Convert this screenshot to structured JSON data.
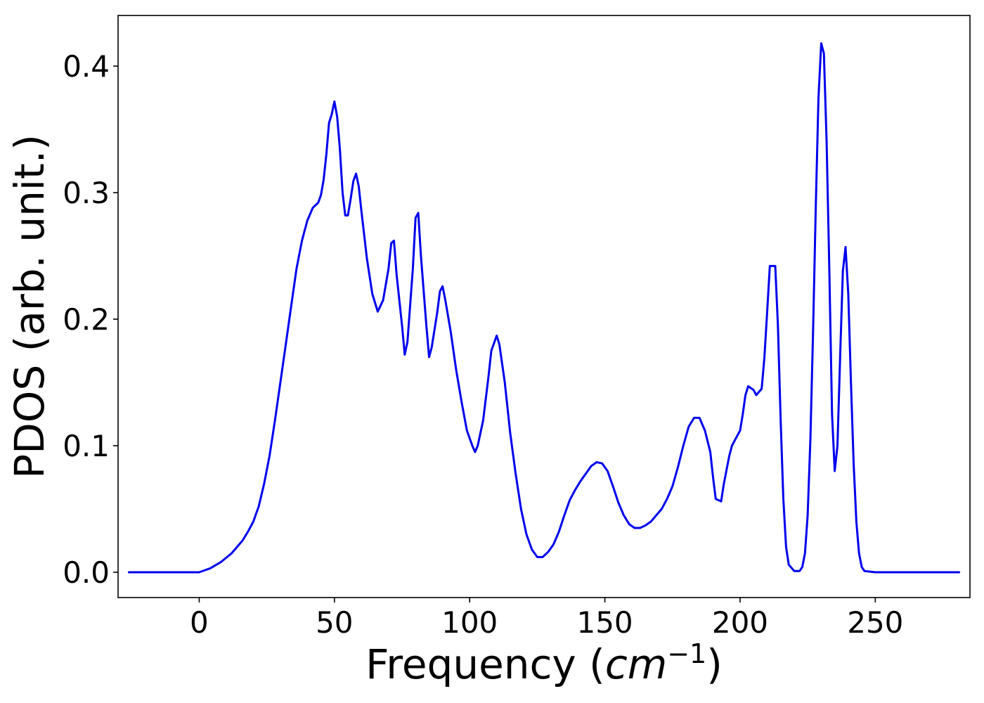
{
  "chart_data": {
    "type": "line",
    "title": "",
    "xlabel": {
      "prefix": "Frequency (",
      "unit_base": "cm",
      "unit_exp": "−1",
      "suffix": ")"
    },
    "ylabel": "PDOS (arb. unit.)",
    "xlim": [
      -30,
      285
    ],
    "ylim": [
      -0.02,
      0.44
    ],
    "grid": false,
    "legend": "none",
    "x_ticks": [
      {
        "value": 0,
        "label": "0"
      },
      {
        "value": 50,
        "label": "50"
      },
      {
        "value": 100,
        "label": "100"
      },
      {
        "value": 150,
        "label": "150"
      },
      {
        "value": 200,
        "label": "200"
      },
      {
        "value": 250,
        "label": "250"
      }
    ],
    "y_ticks": [
      {
        "value": 0.0,
        "label": "0.0"
      },
      {
        "value": 0.1,
        "label": "0.1"
      },
      {
        "value": 0.2,
        "label": "0.2"
      },
      {
        "value": 0.3,
        "label": "0.3"
      },
      {
        "value": 0.4,
        "label": "0.4"
      }
    ],
    "series": [
      {
        "color": "#0000ee",
        "points": [
          [
            -26,
            0.0
          ],
          [
            -10,
            0.0
          ],
          [
            0,
            0.0
          ],
          [
            4,
            0.003
          ],
          [
            8,
            0.008
          ],
          [
            12,
            0.015
          ],
          [
            16,
            0.025
          ],
          [
            18,
            0.032
          ],
          [
            20,
            0.04
          ],
          [
            22,
            0.052
          ],
          [
            24,
            0.07
          ],
          [
            26,
            0.092
          ],
          [
            28,
            0.12
          ],
          [
            30,
            0.15
          ],
          [
            32,
            0.18
          ],
          [
            34,
            0.21
          ],
          [
            36,
            0.24
          ],
          [
            38,
            0.262
          ],
          [
            40,
            0.278
          ],
          [
            42,
            0.288
          ],
          [
            44,
            0.292
          ],
          [
            45,
            0.298
          ],
          [
            46,
            0.31
          ],
          [
            47,
            0.33
          ],
          [
            48,
            0.355
          ],
          [
            49,
            0.362
          ],
          [
            50,
            0.372
          ],
          [
            51,
            0.36
          ],
          [
            52,
            0.335
          ],
          [
            53,
            0.3
          ],
          [
            54,
            0.282
          ],
          [
            55,
            0.282
          ],
          [
            56,
            0.295
          ],
          [
            57,
            0.309
          ],
          [
            58,
            0.315
          ],
          [
            59,
            0.305
          ],
          [
            60,
            0.285
          ],
          [
            62,
            0.248
          ],
          [
            64,
            0.22
          ],
          [
            66,
            0.206
          ],
          [
            68,
            0.215
          ],
          [
            70,
            0.24
          ],
          [
            71,
            0.26
          ],
          [
            72,
            0.262
          ],
          [
            73,
            0.235
          ],
          [
            75,
            0.195
          ],
          [
            76,
            0.172
          ],
          [
            77,
            0.182
          ],
          [
            79,
            0.24
          ],
          [
            80,
            0.28
          ],
          [
            81,
            0.284
          ],
          [
            82,
            0.25
          ],
          [
            84,
            0.195
          ],
          [
            85,
            0.17
          ],
          [
            86,
            0.178
          ],
          [
            88,
            0.205
          ],
          [
            89,
            0.222
          ],
          [
            90,
            0.226
          ],
          [
            91,
            0.215
          ],
          [
            93,
            0.19
          ],
          [
            95,
            0.16
          ],
          [
            97,
            0.135
          ],
          [
            99,
            0.112
          ],
          [
            101,
            0.1
          ],
          [
            102,
            0.095
          ],
          [
            103,
            0.1
          ],
          [
            105,
            0.12
          ],
          [
            107,
            0.155
          ],
          [
            108,
            0.175
          ],
          [
            110,
            0.187
          ],
          [
            111,
            0.18
          ],
          [
            113,
            0.15
          ],
          [
            115,
            0.11
          ],
          [
            117,
            0.078
          ],
          [
            119,
            0.05
          ],
          [
            121,
            0.03
          ],
          [
            123,
            0.018
          ],
          [
            125,
            0.012
          ],
          [
            127,
            0.012
          ],
          [
            129,
            0.016
          ],
          [
            131,
            0.022
          ],
          [
            133,
            0.032
          ],
          [
            135,
            0.045
          ],
          [
            137,
            0.057
          ],
          [
            139,
            0.065
          ],
          [
            141,
            0.072
          ],
          [
            143,
            0.078
          ],
          [
            145,
            0.084
          ],
          [
            147,
            0.087
          ],
          [
            149,
            0.086
          ],
          [
            151,
            0.08
          ],
          [
            153,
            0.068
          ],
          [
            155,
            0.055
          ],
          [
            157,
            0.045
          ],
          [
            159,
            0.038
          ],
          [
            161,
            0.035
          ],
          [
            163,
            0.035
          ],
          [
            165,
            0.037
          ],
          [
            167,
            0.04
          ],
          [
            169,
            0.045
          ],
          [
            171,
            0.05
          ],
          [
            173,
            0.058
          ],
          [
            175,
            0.068
          ],
          [
            177,
            0.083
          ],
          [
            179,
            0.1
          ],
          [
            181,
            0.115
          ],
          [
            183,
            0.122
          ],
          [
            185,
            0.122
          ],
          [
            187,
            0.112
          ],
          [
            189,
            0.095
          ],
          [
            190,
            0.075
          ],
          [
            191,
            0.058
          ],
          [
            193,
            0.056
          ],
          [
            194,
            0.07
          ],
          [
            196,
            0.092
          ],
          [
            197,
            0.1
          ],
          [
            199,
            0.108
          ],
          [
            200,
            0.112
          ],
          [
            201,
            0.125
          ],
          [
            202,
            0.14
          ],
          [
            203,
            0.147
          ],
          [
            205,
            0.144
          ],
          [
            206,
            0.14
          ],
          [
            208,
            0.145
          ],
          [
            209,
            0.17
          ],
          [
            210,
            0.205
          ],
          [
            211,
            0.242
          ],
          [
            213,
            0.242
          ],
          [
            214,
            0.195
          ],
          [
            215,
            0.12
          ],
          [
            216,
            0.058
          ],
          [
            217,
            0.02
          ],
          [
            218,
            0.006
          ],
          [
            220,
            0.001
          ],
          [
            222,
            0.001
          ],
          [
            223,
            0.004
          ],
          [
            224,
            0.015
          ],
          [
            225,
            0.045
          ],
          [
            226,
            0.105
          ],
          [
            227,
            0.19
          ],
          [
            228,
            0.29
          ],
          [
            229,
            0.375
          ],
          [
            230,
            0.418
          ],
          [
            231,
            0.41
          ],
          [
            232,
            0.34
          ],
          [
            233,
            0.24
          ],
          [
            234,
            0.125
          ],
          [
            235,
            0.08
          ],
          [
            236,
            0.1
          ],
          [
            237,
            0.17
          ],
          [
            238,
            0.238
          ],
          [
            239,
            0.257
          ],
          [
            240,
            0.22
          ],
          [
            241,
            0.15
          ],
          [
            242,
            0.085
          ],
          [
            243,
            0.04
          ],
          [
            244,
            0.015
          ],
          [
            245,
            0.004
          ],
          [
            246,
            0.001
          ],
          [
            250,
            0.0
          ],
          [
            265,
            0.0
          ],
          [
            281,
            0.0
          ]
        ]
      }
    ]
  }
}
